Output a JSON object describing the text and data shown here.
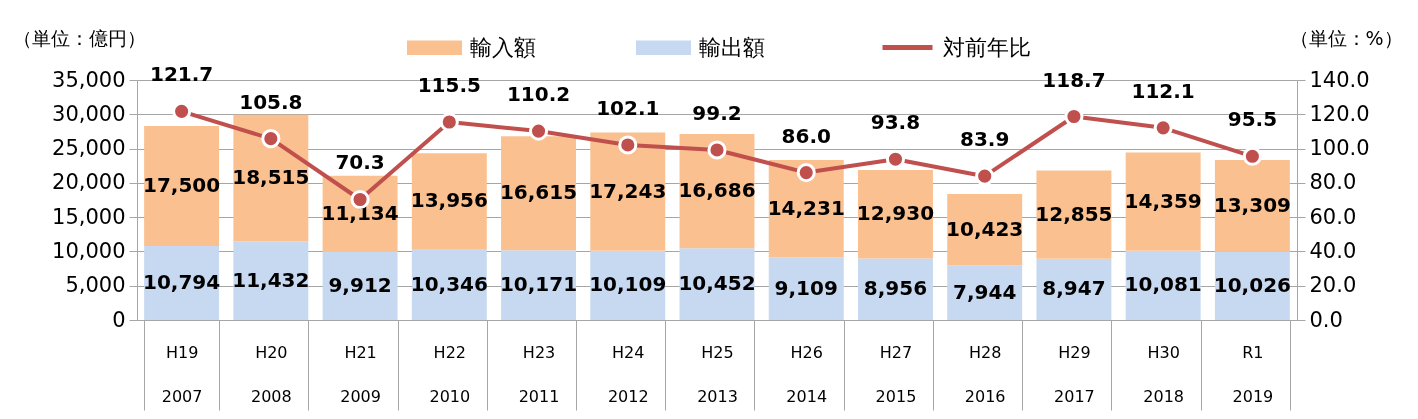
{
  "chart_data": {
    "type": "bar",
    "stacked": true,
    "ylabel": "（単位：億円）",
    "y2label": "（単位：%）",
    "categories": [
      "H19\n2007",
      "H20\n2008",
      "H21\n2009",
      "H22\n2010",
      "H23\n2011",
      "H24\n2012",
      "H25\n2013",
      "H26\n2014",
      "H27\n2015",
      "H28\n2016",
      "H29\n2017",
      "H30\n2018",
      "R1\n2019"
    ],
    "series": [
      {
        "name": "輸出額",
        "color": "#c6d9f1",
        "values": [
          10794,
          11432,
          9912,
          10346,
          10171,
          10109,
          10452,
          9109,
          8956,
          7944,
          8947,
          10081,
          10026
        ],
        "value_labels": [
          "10,794",
          "11,432",
          "9,912",
          "10,346",
          "10,171",
          "10,109",
          "10,452",
          "9,109",
          "8,956",
          "7,944",
          "8,947",
          "10,081",
          "10,026"
        ]
      },
      {
        "name": "輸入額",
        "color": "#fac090",
        "values": [
          17500,
          18515,
          11134,
          13956,
          16615,
          17243,
          16686,
          14231,
          12930,
          10423,
          12855,
          14359,
          13309
        ],
        "value_labels": [
          "17,500",
          "18,515",
          "11,134",
          "13,956",
          "16,615",
          "17,243",
          "16,686",
          "14,231",
          "12,930",
          "10,423",
          "12,855",
          "14,359",
          "13,309"
        ]
      },
      {
        "name": "対前年比",
        "type": "line",
        "axis": "y2",
        "color": "#c0504d",
        "values": [
          121.7,
          105.8,
          70.3,
          115.5,
          110.2,
          102.1,
          99.2,
          86.0,
          93.8,
          83.9,
          118.7,
          112.1,
          95.5
        ],
        "value_labels": [
          "121.7",
          "105.8",
          "70.3",
          "115.5",
          "110.2",
          "102.1",
          "99.2",
          "86.0",
          "93.8",
          "83.9",
          "118.7",
          "112.1",
          "95.5"
        ]
      }
    ],
    "ylim": [
      0,
      35000
    ],
    "yticks": [
      {
        "value": 0,
        "label": "0"
      },
      {
        "value": 5000,
        "label": "5,000"
      },
      {
        "value": 10000,
        "label": "10,000"
      },
      {
        "value": 15000,
        "label": "15,000"
      },
      {
        "value": 20000,
        "label": "20,000"
      },
      {
        "value": 25000,
        "label": "25,000"
      },
      {
        "value": 30000,
        "label": "30,000"
      },
      {
        "value": 35000,
        "label": "35,000"
      }
    ],
    "y2lim": [
      0,
      140
    ],
    "y2ticks": [
      {
        "value": 0,
        "label": "0.0"
      },
      {
        "value": 20,
        "label": "20.0"
      },
      {
        "value": 40,
        "label": "40.0"
      },
      {
        "value": 60,
        "label": "60.0"
      },
      {
        "value": 80,
        "label": "80.0"
      },
      {
        "value": 100,
        "label": "100.0"
      },
      {
        "value": 120,
        "label": "120.0"
      },
      {
        "value": 140,
        "label": "140.0"
      }
    ],
    "grid": "y",
    "legend": "top",
    "marker": "circle"
  }
}
